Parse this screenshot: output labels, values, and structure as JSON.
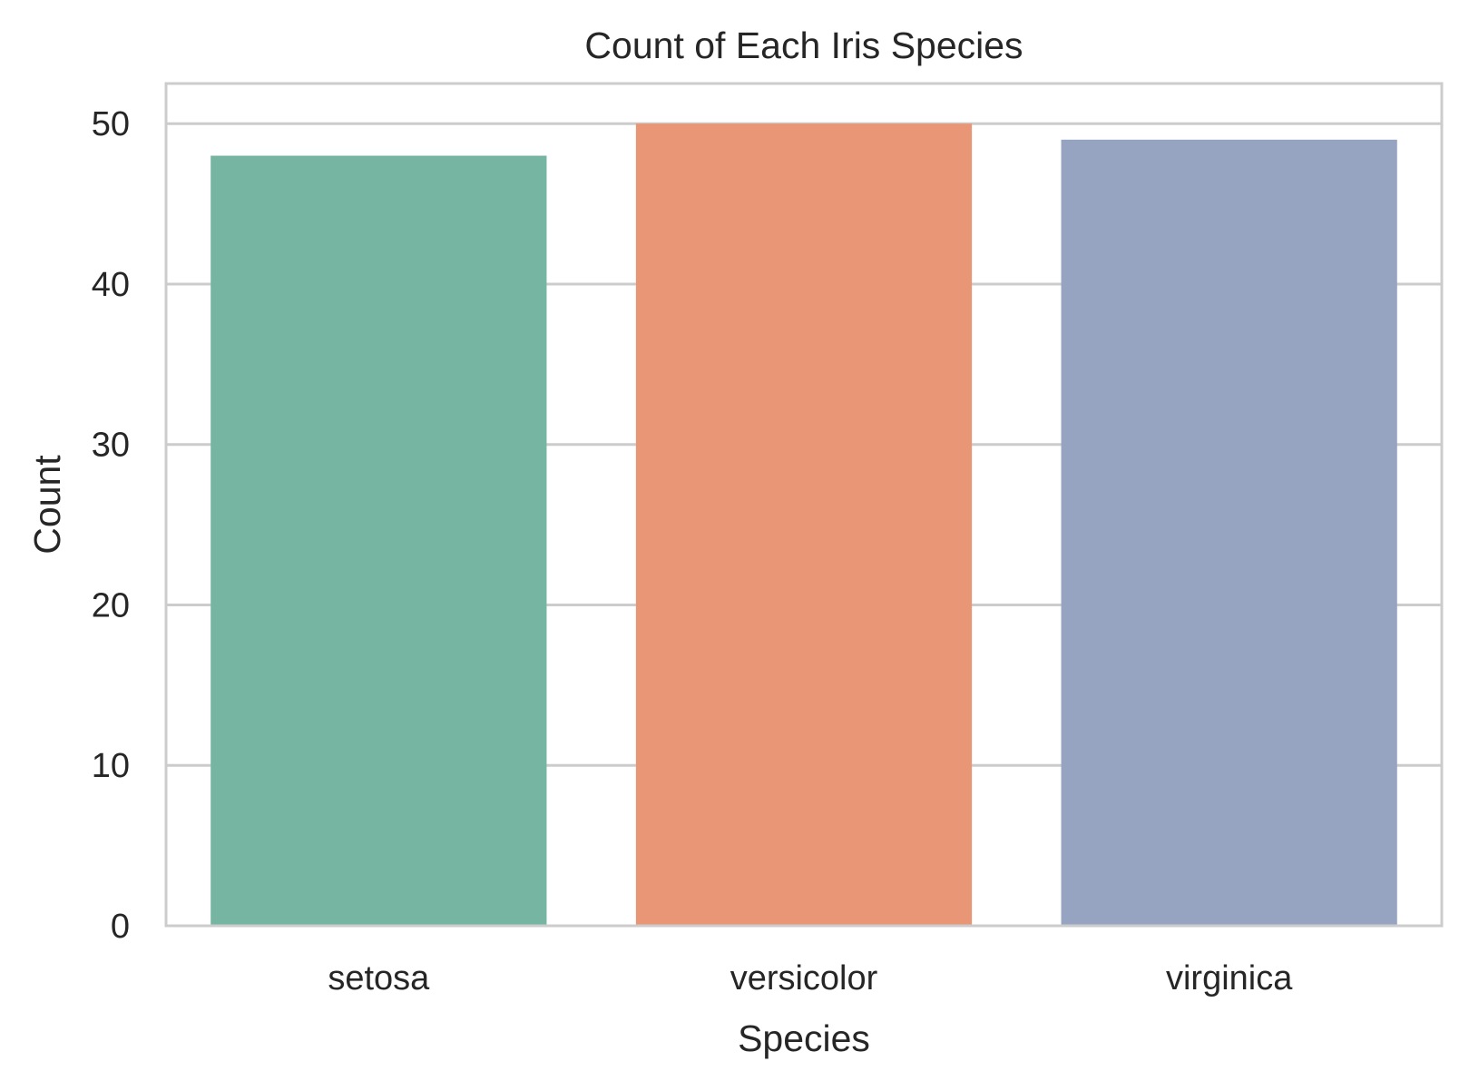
{
  "chart_data": {
    "type": "bar",
    "title": "Count of Each Iris Species",
    "xlabel": "Species",
    "ylabel": "Count",
    "categories": [
      "setosa",
      "versicolor",
      "virginica"
    ],
    "values": [
      48,
      50,
      49
    ],
    "colors": [
      "#76b5a1",
      "#e89675",
      "#96a4c2"
    ],
    "ylim": [
      0,
      52.5
    ],
    "yticks": [
      0,
      10,
      20,
      30,
      40,
      50
    ],
    "grid": "horizontal"
  },
  "styles": {
    "grid_color": "#cccccc",
    "frame_color": "#cccccc",
    "text_color": "#262626"
  }
}
